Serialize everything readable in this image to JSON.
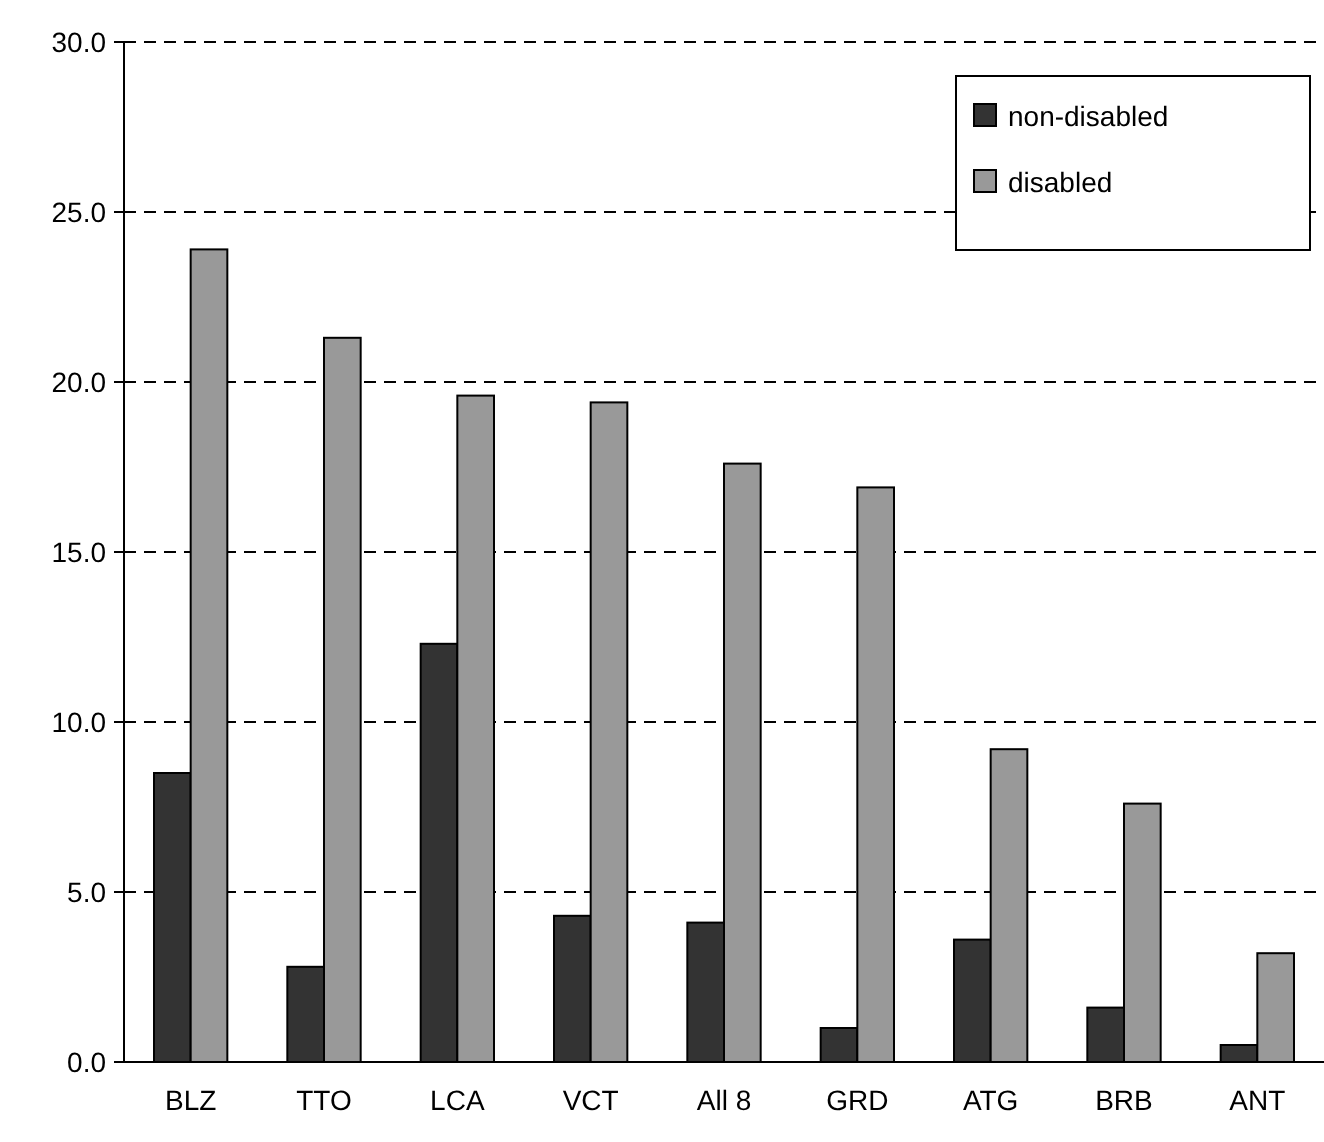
{
  "chart_data": {
    "type": "bar",
    "categories": [
      "BLZ",
      "TTO",
      "LCA",
      "VCT",
      "All 8",
      "GRD",
      "ATG",
      "BRB",
      "ANT"
    ],
    "series": [
      {
        "name": "non-disabled",
        "color": "#333333",
        "values": [
          8.5,
          2.8,
          12.3,
          4.3,
          4.1,
          1.0,
          3.6,
          1.6,
          0.5
        ]
      },
      {
        "name": "disabled",
        "color": "#999999",
        "values": [
          23.9,
          21.3,
          19.6,
          19.4,
          17.6,
          16.9,
          9.2,
          7.6,
          3.2
        ]
      }
    ],
    "ylim": [
      0,
      30
    ],
    "yticks": [
      {
        "value": 0,
        "label": "0.0"
      },
      {
        "value": 5,
        "label": "5.0"
      },
      {
        "value": 10,
        "label": "10.0"
      },
      {
        "value": 15,
        "label": "15.0"
      },
      {
        "value": 20,
        "label": "20.0"
      },
      {
        "value": 25,
        "label": "25.0"
      },
      {
        "value": 30,
        "label": "30.0"
      }
    ],
    "grid": "y",
    "legend": "top right"
  }
}
